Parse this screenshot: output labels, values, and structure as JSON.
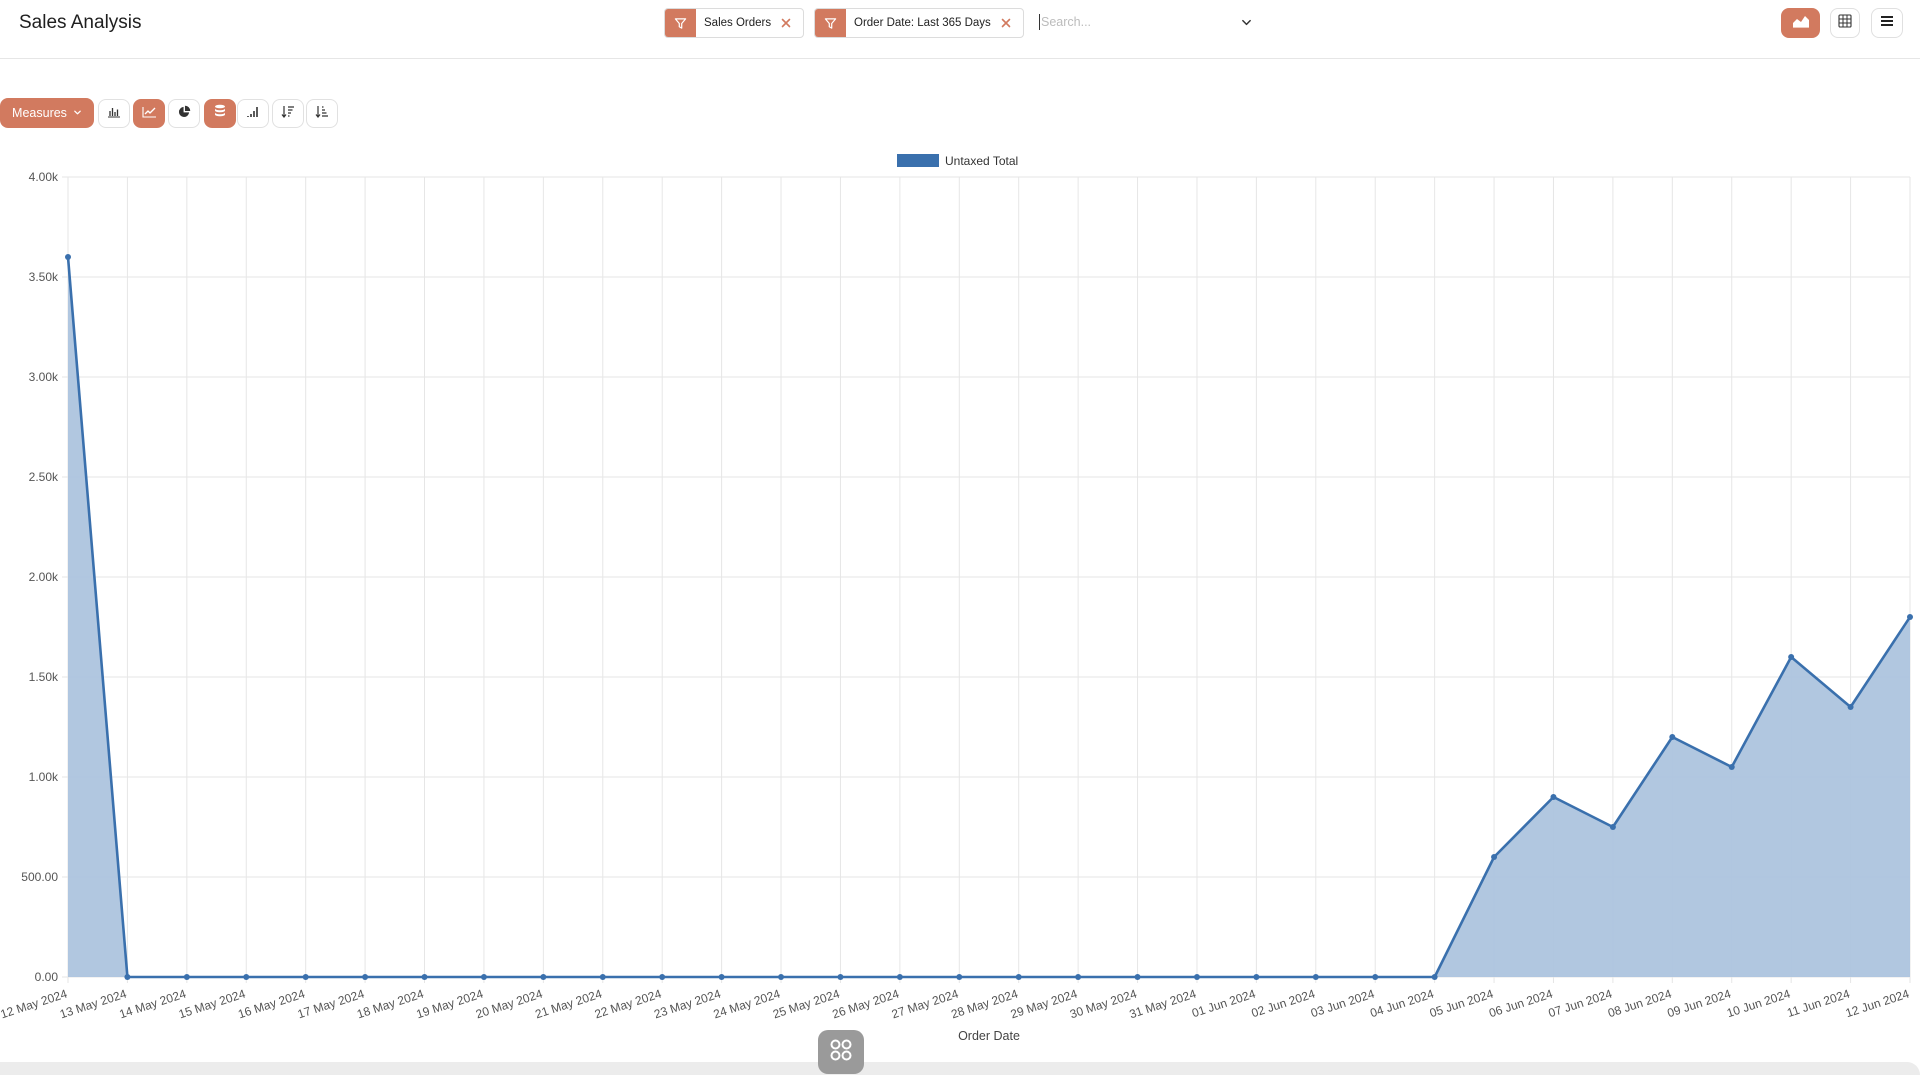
{
  "header": {
    "title": "Sales Analysis",
    "facets": [
      {
        "label": "Sales Orders",
        "icon": "filter-icon"
      },
      {
        "label": "Order Date: Last 365 Days",
        "icon": "filter-icon"
      }
    ],
    "search": {
      "placeholder": "Search...",
      "value": ""
    }
  },
  "toolbar": {
    "measures_label": "Measures"
  },
  "colors": {
    "accent": "#d27a5f",
    "series": "#3a70ad",
    "area": "#adc4de"
  },
  "chart_data": {
    "type": "area",
    "legend": "top-center",
    "grid": true,
    "xlabel": "Order Date",
    "ylabel": "",
    "ylim": [
      0,
      4000
    ],
    "yticks": [
      {
        "v": 0,
        "label": "0.00"
      },
      {
        "v": 500,
        "label": "500.00"
      },
      {
        "v": 1000,
        "label": "1.00k"
      },
      {
        "v": 1500,
        "label": "1.50k"
      },
      {
        "v": 2000,
        "label": "2.00k"
      },
      {
        "v": 2500,
        "label": "2.50k"
      },
      {
        "v": 3000,
        "label": "3.00k"
      },
      {
        "v": 3500,
        "label": "3.50k"
      },
      {
        "v": 4000,
        "label": "4.00k"
      }
    ],
    "categories": [
      "12 May 2024",
      "13 May 2024",
      "14 May 2024",
      "15 May 2024",
      "16 May 2024",
      "17 May 2024",
      "18 May 2024",
      "19 May 2024",
      "20 May 2024",
      "21 May 2024",
      "22 May 2024",
      "23 May 2024",
      "24 May 2024",
      "25 May 2024",
      "26 May 2024",
      "27 May 2024",
      "28 May 2024",
      "29 May 2024",
      "30 May 2024",
      "31 May 2024",
      "01 Jun 2024",
      "02 Jun 2024",
      "03 Jun 2024",
      "04 Jun 2024",
      "05 Jun 2024",
      "06 Jun 2024",
      "07 Jun 2024",
      "08 Jun 2024",
      "09 Jun 2024",
      "10 Jun 2024",
      "11 Jun 2024",
      "12 Jun 2024"
    ],
    "series": [
      {
        "name": "Untaxed Total",
        "values": [
          3600,
          0,
          0,
          0,
          0,
          0,
          0,
          0,
          0,
          0,
          0,
          0,
          0,
          0,
          0,
          0,
          0,
          0,
          0,
          0,
          0,
          0,
          0,
          0,
          600,
          900,
          750,
          1200,
          1050,
          1600,
          1350,
          1800
        ]
      }
    ]
  }
}
